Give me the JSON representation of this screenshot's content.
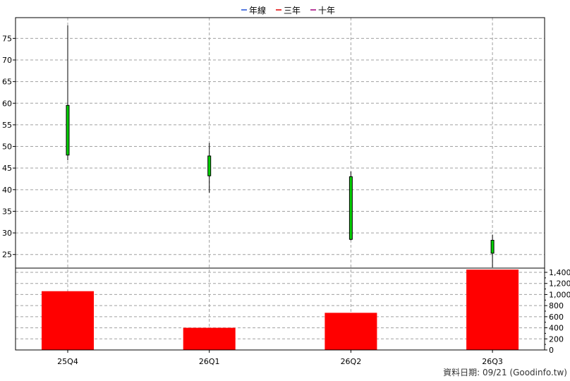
{
  "legend": [
    {
      "label": "年線",
      "color": "#1f4fd6"
    },
    {
      "label": "三年",
      "color": "#e00000"
    },
    {
      "label": "十年",
      "color": "#a0007a"
    }
  ],
  "footer": "資料日期: 09/21  (Goodinfo.tw)",
  "colors": {
    "candle_body": "#00d000",
    "candle_outline": "#000000",
    "volume_bar": "#ff0000",
    "grid": "#a0a0a0"
  },
  "chart_data": [
    {
      "type": "candlestick",
      "categories": [
        "25Q4",
        "26Q1",
        "26Q2",
        "26Q3"
      ],
      "series": [
        {
          "open": 59.5,
          "high": 78.0,
          "low": 46.8,
          "close": 48.0
        },
        {
          "open": 47.8,
          "high": 50.8,
          "low": 39.3,
          "close": 43.2
        },
        {
          "open": 43.0,
          "high": 44.2,
          "low": 28.3,
          "close": 28.5
        },
        {
          "open": 28.3,
          "high": 29.6,
          "low": 22.0,
          "close": 25.3
        }
      ],
      "ylim": [
        20,
        80
      ],
      "y_ticks": [
        25,
        30,
        35,
        40,
        45,
        50,
        55,
        60,
        65,
        70,
        75
      ],
      "y_axis": "left",
      "grid": true
    },
    {
      "type": "bar",
      "categories": [
        "25Q4",
        "26Q1",
        "26Q2",
        "26Q3"
      ],
      "values": [
        1060,
        400,
        670,
        1450
      ],
      "ylim": [
        0,
        1500
      ],
      "y_ticks": [
        "0",
        "200",
        "400",
        "600",
        "800",
        "1,000",
        "1,200",
        "1,400"
      ],
      "y_tick_values": [
        0,
        200,
        400,
        600,
        800,
        1000,
        1200,
        1400
      ],
      "y_axis": "right",
      "grid": true
    }
  ]
}
